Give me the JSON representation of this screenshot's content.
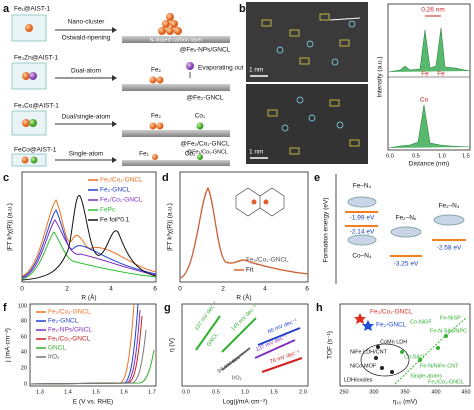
{
  "panel_a": {
    "letter": "a",
    "rows": [
      {
        "precursor": "Fe₁@AIST-1",
        "process": [
          "Nano-cluster",
          "Ostwald-ripening"
        ],
        "layer": "N-doped carbon layer",
        "product": "@Feₓ-NPs/GNCL"
      },
      {
        "precursor": "Fe₂Zn@AIST-1",
        "process": [
          "Dual-atom"
        ],
        "species": [
          "Fe₂",
          "Evaporating out"
        ],
        "product": "@Fe₂-GNCL"
      },
      {
        "precursor": "Fe₂Co@AIST-1",
        "process": [
          "Dual/single-atom"
        ],
        "species": [
          "Fe₂",
          "Co₁"
        ],
        "product": "@Fe₂/Co₁-GNCL"
      },
      {
        "precursor": "FeCo@AIST-1",
        "process": [
          "Single-atom"
        ],
        "species": [
          "Fe₁",
          "Co₁"
        ],
        "product": "@Fe₁/Co₁-GNCL"
      }
    ]
  },
  "panel_b": {
    "letter": "b",
    "scale_bars": [
      "1 nm",
      "1 nm"
    ],
    "spacing": "0.26 nm",
    "peaks": [
      "Fe",
      "Fe",
      "Co"
    ],
    "ylabel": "Intensity (a.u.)",
    "xlabel": "Distance (nm)",
    "xticks": [
      "0.0",
      "0.5",
      "1.0",
      "1.5"
    ]
  },
  "panel_c": {
    "letter": "c",
    "ylabel": "|FT k³χ(R)| (a.u.)",
    "xlabel": "R (Å)",
    "xticks": [
      "0",
      "2",
      "4",
      "6"
    ],
    "legend": [
      "Fe₂/Co₁-GNCL",
      "Fe₂-GNCL",
      "Fe₁/Co₁-GNCL",
      "FePc",
      "Fe foil*0.1"
    ]
  },
  "panel_d": {
    "letter": "d",
    "ylabel": "|FT k³χ(R)| (a.u.)",
    "xlabel": "R (Å)",
    "xticks": [
      "0",
      "2",
      "4",
      "6"
    ],
    "legend": [
      "Fe₂/Co₁-GNCL",
      "Fit"
    ]
  },
  "panel_e": {
    "letter": "e",
    "ylabel": "Formation energy (eV)",
    "labels": [
      "Fe–N₄",
      "-1.99 eV",
      "-2.14 eV",
      "Co–N₄",
      "Fe₂–N₆",
      "-3.25 eV",
      "Fe₂–N₄",
      "-2.58 eV"
    ]
  },
  "panel_f": {
    "letter": "f",
    "ylabel": "j (mA·cm⁻²)",
    "xlabel": "E (V vs. RHE)",
    "xticks": [
      "1.3",
      "1.4",
      "1.5",
      "1.6",
      "1.7"
    ],
    "yticks": [
      "0",
      "20",
      "40",
      "60",
      "80",
      "100"
    ],
    "legend": [
      "Fe₂/Co₁-GNCL",
      "Fe₂-GNCL",
      "Feₓ-NPs/GNCL",
      "Fe₁/Co₁-GNCL",
      "GNCL",
      "IrO₂"
    ]
  },
  "panel_g": {
    "letter": "g",
    "ylabel": "η (V)",
    "xlabel": "Log(j/mA·cm⁻²)",
    "xticks": [
      "0.0",
      "0.5",
      "1.0",
      "1.5",
      "2.0"
    ],
    "labels": [
      "107 mV dec⁻¹",
      "GNCL",
      "145 mV dec⁻¹",
      "94 mV dec⁻¹",
      "IrO₂",
      "66 mV dec⁻¹",
      "137 mV dec⁻¹",
      "76 mV dec⁻¹"
    ]
  },
  "panel_h": {
    "letter": "h",
    "ylabel": "TOF (s⁻¹)",
    "xlabel": "η₁₀ (mV)",
    "xticks": [
      "250",
      "300",
      "350",
      "400",
      "450"
    ],
    "labels": [
      "Fe₂/Co₁-GNCL",
      "Fe₂-GNCL",
      "Co-NiGF",
      "CoMn LDH",
      "NiFe LDH/CNT",
      "NiCo-MOF",
      "Co-SAC",
      "Fe-NiSP",
      "Fe-N SAs/NPC",
      "Fe-N/NiFe-CNT",
      "LDH/oxides",
      "Single-atoms",
      "Fe₂/Co₁-GNCL"
    ]
  }
}
